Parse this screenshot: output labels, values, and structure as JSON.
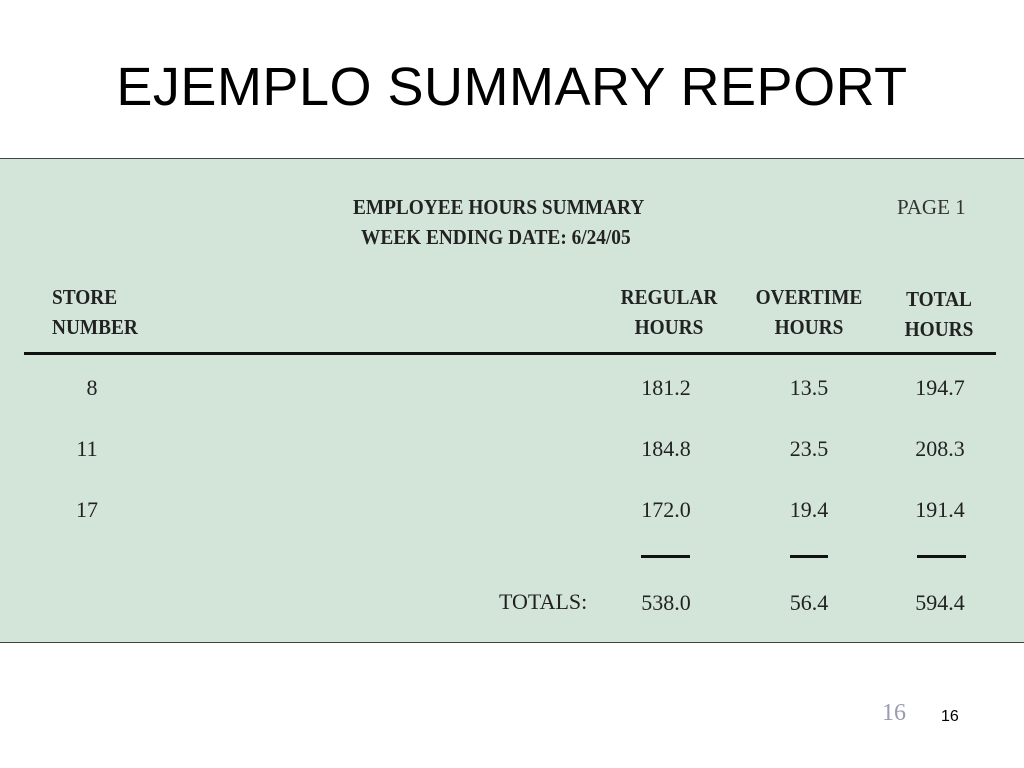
{
  "slide": {
    "title": "EJEMPLO SUMMARY REPORT",
    "page_number_faded": "16",
    "page_number": "16"
  },
  "report": {
    "heading_line1": "EMPLOYEE HOURS SUMMARY",
    "heading_line2": "WEEK ENDING DATE:  6/24/05",
    "page_label": "PAGE 1",
    "columns": {
      "store": [
        "STORE",
        "NUMBER"
      ],
      "regular": [
        "REGULAR",
        "HOURS"
      ],
      "overtime": [
        "OVERTIME",
        "HOURS"
      ],
      "total": [
        "TOTAL",
        "HOURS"
      ]
    },
    "rows": [
      {
        "store": "8",
        "regular": "181.2",
        "overtime": "13.5",
        "total": "194.7"
      },
      {
        "store": "11",
        "regular": "184.8",
        "overtime": "23.5",
        "total": "208.3"
      },
      {
        "store": "17",
        "regular": "172.0",
        "overtime": "19.4",
        "total": "191.4"
      }
    ],
    "totals": {
      "label": "TOTALS:",
      "regular": "538.0",
      "overtime": "56.4",
      "total": "594.4"
    },
    "colors": {
      "panel_background": "#d3e5d9",
      "text": "#222222"
    }
  }
}
